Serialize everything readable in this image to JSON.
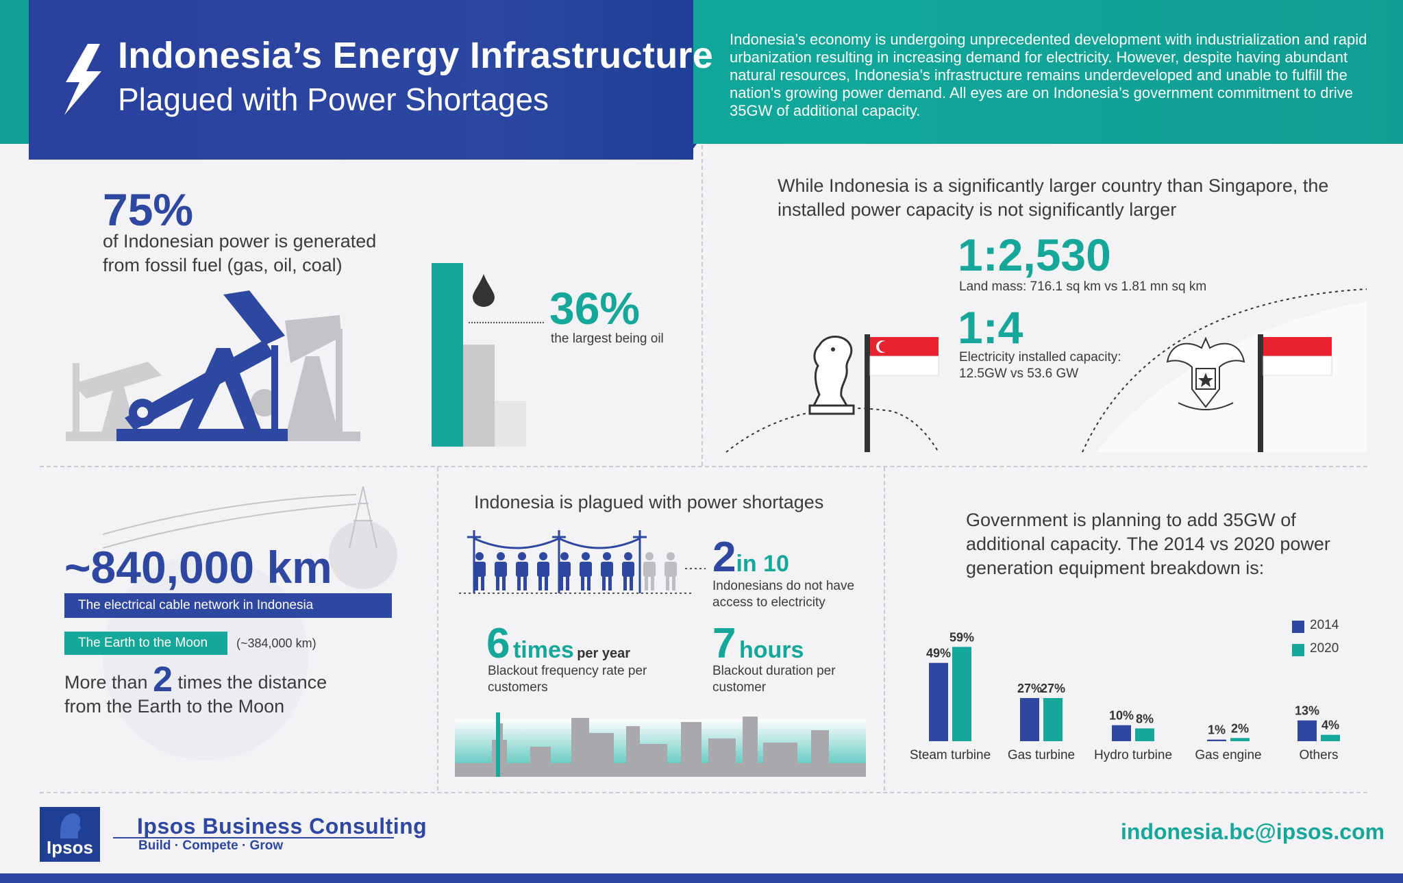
{
  "header": {
    "title": "Indonesia’s Energy Infrastructure",
    "subtitle": "Plagued with Power Shortages",
    "intro": "Indonesia’s economy is undergoing unprecedented development with industrialization and rapid urbanization resulting in increasing demand for electricity. However, despite having abundant natural resources, Indonesia's infrastructure remains underdeveloped and unable to fulfill the nation's growing power demand. All eyes are on Indonesia’s government commitment to drive 35GW of additional capacity."
  },
  "fossil": {
    "stat": "75%",
    "description": "of Indonesian power is generated from fossil fuel (gas, oil, coal)",
    "oil_stat": "36%",
    "oil_description": "the largest being oil",
    "bar_levels": [
      36,
      20,
      9
    ],
    "bar_colors": [
      "#15a79a",
      "#c9c9cc",
      "#e6e6e8"
    ]
  },
  "comparison": {
    "heading": "While Indonesia is a significantly larger country than Singapore, the installed power capacity is not significantly larger",
    "land_ratio": "1:2,530",
    "land_description": "Land mass: 716.1 sq km vs 1.81 mn sq km",
    "capacity_ratio": "1:4",
    "capacity_description": "Electricity installed capacity: 12.5GW vs 53.6 GW"
  },
  "cable": {
    "length": "~840,000 km",
    "cable_label": "The electrical cable network in Indonesia",
    "moon_label": "The Earth to the Moon",
    "moon_distance": "(~384,000 km)",
    "multiple_prefix": "More than",
    "multiple_value": "2",
    "multiple_suffix": "times the distance from the Earth to the Moon"
  },
  "shortages": {
    "heading": "Indonesia is plagued with power shortages",
    "access_value": "2",
    "access_unit": "in 10",
    "access_description": "Indonesians do not have access to electricity",
    "people_total": 10,
    "people_without": 2,
    "frequency_value": "6",
    "frequency_unit": "times",
    "frequency_suffix": "per year",
    "frequency_description": "Blackout frequency rate per customers",
    "duration_value": "7",
    "duration_unit": "hours",
    "duration_description": "Blackout duration per customer"
  },
  "government": {
    "heading": "Government is planning to add 35GW of additional capacity. The 2014 vs 2020 power generation equipment breakdown is:"
  },
  "chart_data": {
    "type": "bar",
    "categories": [
      "Steam turbine",
      "Gas turbine",
      "Hydro turbine",
      "Gas engine",
      "Others"
    ],
    "series": [
      {
        "name": "2014",
        "values": [
          49,
          27,
          10,
          1,
          13
        ],
        "labels": [
          "49%",
          "27%",
          "10%",
          "1%",
          "13%"
        ],
        "color": "#2e47a0"
      },
      {
        "name": "2020",
        "values": [
          59,
          27,
          8,
          2,
          4
        ],
        "labels": [
          "59%",
          "27%",
          "8%",
          "2%",
          "4%"
        ],
        "color": "#15a79a"
      }
    ],
    "ylim": [
      0,
      60
    ],
    "legend": "top-right",
    "grid": false
  },
  "footer": {
    "logo_word": "Ipsos",
    "company": "Ipsos Business Consulting",
    "tagline": "Build · Compete · Grow",
    "email": "indonesia.bc@ipsos.com"
  },
  "colors": {
    "navy": "#2e47a0",
    "teal": "#15a79a",
    "grey": "#bdbdc2",
    "flag_red": "#e8222e"
  }
}
